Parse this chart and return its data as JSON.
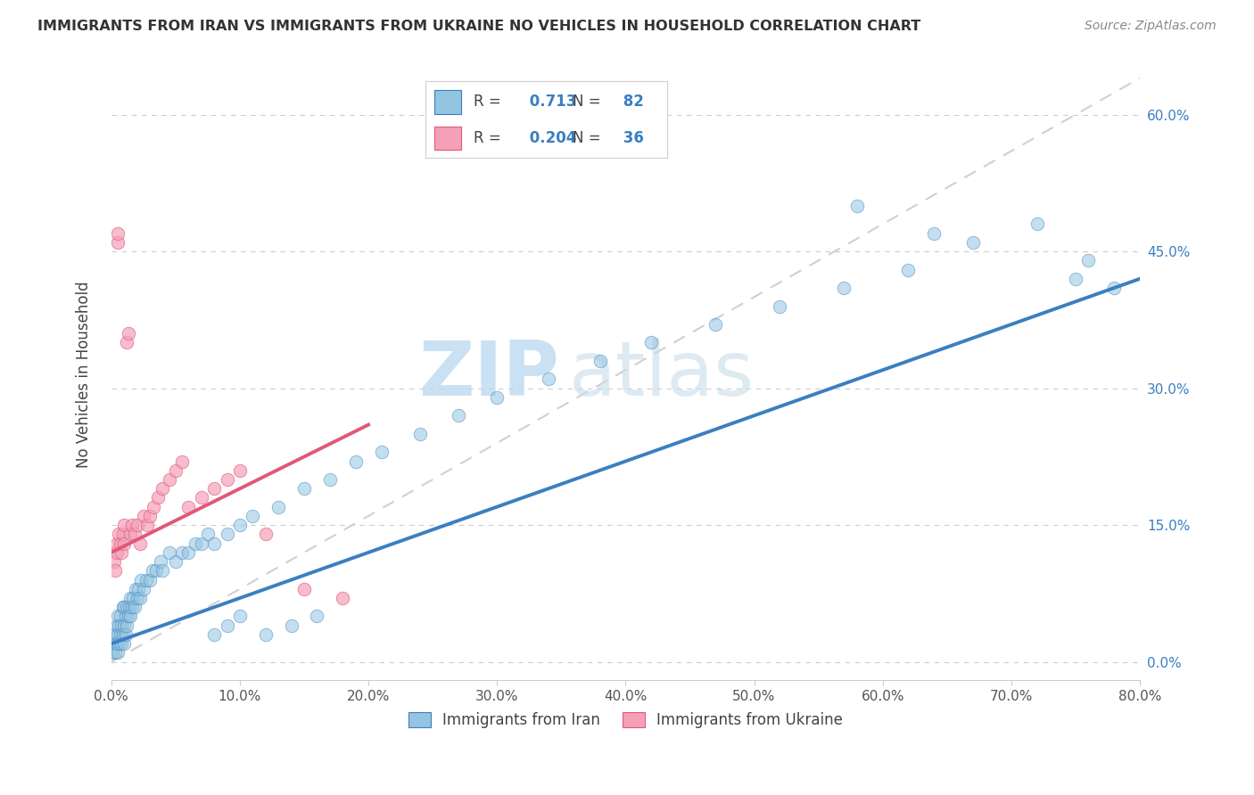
{
  "title": "IMMIGRANTS FROM IRAN VS IMMIGRANTS FROM UKRAINE NO VEHICLES IN HOUSEHOLD CORRELATION CHART",
  "source": "Source: ZipAtlas.com",
  "ylabel": "No Vehicles in Household",
  "legend_label1": "Immigrants from Iran",
  "legend_label2": "Immigrants from Ukraine",
  "R1": 0.713,
  "N1": 82,
  "R2": 0.204,
  "N2": 36,
  "color1": "#93c4e0",
  "color2": "#f4a0b8",
  "trendline1_color": "#3a7fc1",
  "trendline2_color": "#e05878",
  "watermark_zip": "ZIP",
  "watermark_atlas": "atlas",
  "xmin": 0.0,
  "xmax": 0.8,
  "ymin": -0.02,
  "ymax": 0.65,
  "yticks": [
    0.0,
    0.15,
    0.3,
    0.45,
    0.6
  ],
  "xticks": [
    0.0,
    0.1,
    0.2,
    0.3,
    0.4,
    0.5,
    0.6,
    0.7,
    0.8
  ],
  "iran_x": [
    0.001,
    0.002,
    0.003,
    0.003,
    0.004,
    0.004,
    0.005,
    0.005,
    0.005,
    0.006,
    0.006,
    0.007,
    0.007,
    0.008,
    0.008,
    0.009,
    0.009,
    0.01,
    0.01,
    0.01,
    0.011,
    0.011,
    0.012,
    0.012,
    0.013,
    0.014,
    0.015,
    0.015,
    0.016,
    0.017,
    0.018,
    0.019,
    0.02,
    0.021,
    0.022,
    0.023,
    0.025,
    0.027,
    0.03,
    0.032,
    0.035,
    0.038,
    0.04,
    0.045,
    0.05,
    0.055,
    0.06,
    0.065,
    0.07,
    0.075,
    0.08,
    0.09,
    0.1,
    0.11,
    0.13,
    0.15,
    0.17,
    0.19,
    0.21,
    0.24,
    0.27,
    0.3,
    0.34,
    0.38,
    0.42,
    0.47,
    0.52,
    0.57,
    0.62,
    0.67,
    0.72,
    0.75,
    0.76,
    0.78,
    0.58,
    0.64,
    0.08,
    0.09,
    0.1,
    0.12,
    0.14,
    0.16
  ],
  "iran_y": [
    0.01,
    0.02,
    0.01,
    0.03,
    0.02,
    0.04,
    0.01,
    0.03,
    0.05,
    0.02,
    0.04,
    0.03,
    0.05,
    0.02,
    0.04,
    0.03,
    0.06,
    0.02,
    0.04,
    0.06,
    0.03,
    0.05,
    0.04,
    0.06,
    0.05,
    0.06,
    0.05,
    0.07,
    0.06,
    0.07,
    0.06,
    0.08,
    0.07,
    0.08,
    0.07,
    0.09,
    0.08,
    0.09,
    0.09,
    0.1,
    0.1,
    0.11,
    0.1,
    0.12,
    0.11,
    0.12,
    0.12,
    0.13,
    0.13,
    0.14,
    0.13,
    0.14,
    0.15,
    0.16,
    0.17,
    0.19,
    0.2,
    0.22,
    0.23,
    0.25,
    0.27,
    0.29,
    0.31,
    0.33,
    0.35,
    0.37,
    0.39,
    0.41,
    0.43,
    0.46,
    0.48,
    0.42,
    0.44,
    0.41,
    0.5,
    0.47,
    0.03,
    0.04,
    0.05,
    0.03,
    0.04,
    0.05
  ],
  "ukraine_x": [
    0.002,
    0.003,
    0.004,
    0.004,
    0.005,
    0.005,
    0.006,
    0.007,
    0.008,
    0.009,
    0.01,
    0.01,
    0.012,
    0.013,
    0.015,
    0.016,
    0.018,
    0.02,
    0.022,
    0.025,
    0.028,
    0.03,
    0.033,
    0.036,
    0.04,
    0.045,
    0.05,
    0.055,
    0.06,
    0.07,
    0.08,
    0.09,
    0.1,
    0.12,
    0.15,
    0.18
  ],
  "ukraine_y": [
    0.11,
    0.1,
    0.12,
    0.13,
    0.46,
    0.47,
    0.14,
    0.13,
    0.12,
    0.14,
    0.13,
    0.15,
    0.35,
    0.36,
    0.14,
    0.15,
    0.14,
    0.15,
    0.13,
    0.16,
    0.15,
    0.16,
    0.17,
    0.18,
    0.19,
    0.2,
    0.21,
    0.22,
    0.17,
    0.18,
    0.19,
    0.2,
    0.21,
    0.14,
    0.08,
    0.07
  ],
  "trendline1_x0": 0.0,
  "trendline1_y0": 0.02,
  "trendline1_x1": 0.8,
  "trendline1_y1": 0.42,
  "trendline2_x0": 0.0,
  "trendline2_y0": 0.12,
  "trendline2_x1": 0.2,
  "trendline2_y1": 0.26
}
